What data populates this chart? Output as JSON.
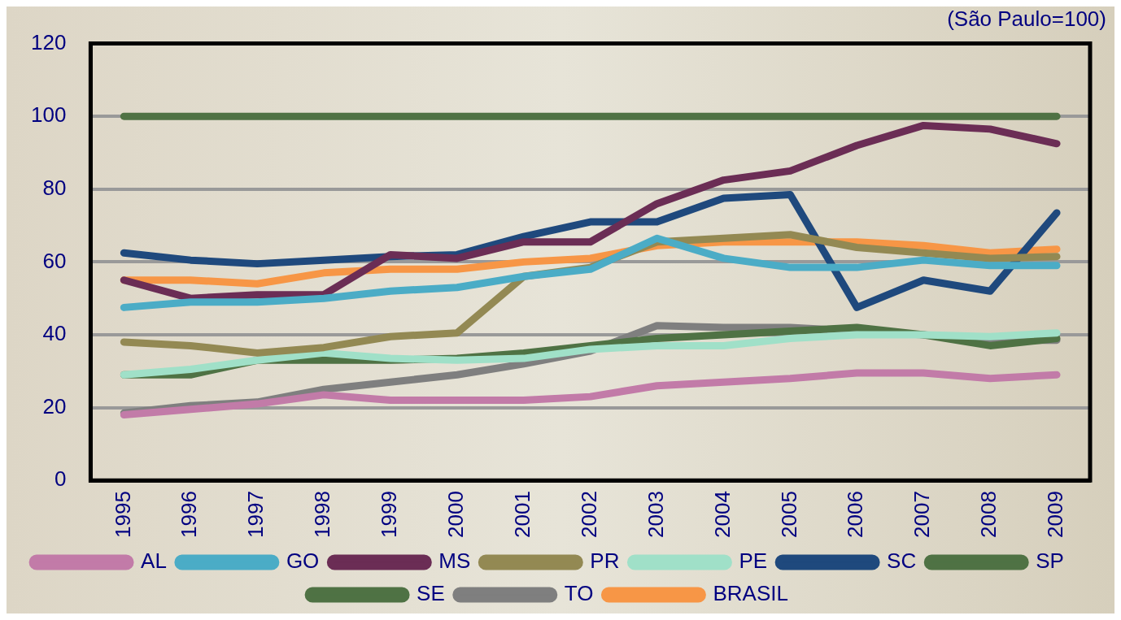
{
  "chart_data": {
    "type": "line",
    "subtitle": "(São Paulo=100)",
    "categories": [
      "1995",
      "1996",
      "1997",
      "1998",
      "1999",
      "2000",
      "2001",
      "2002",
      "2003",
      "2004",
      "2005",
      "2006",
      "2007",
      "2008",
      "2009"
    ],
    "series": [
      {
        "name": "AL",
        "color": "#c27ba8",
        "values": [
          18,
          19.5,
          21,
          23.5,
          22,
          22,
          22,
          23,
          26,
          27,
          28,
          29.5,
          29.5,
          28,
          29
        ]
      },
      {
        "name": "GO",
        "color": "#4bacc6",
        "values": [
          47.5,
          49,
          49,
          50,
          52,
          53,
          56,
          58,
          66.5,
          61,
          58.5,
          58.5,
          60.5,
          59,
          59
        ]
      },
      {
        "name": "MS",
        "color": "#6b2d55",
        "values": [
          55,
          50,
          51,
          51,
          62,
          61,
          65.5,
          65.5,
          76,
          82.5,
          85,
          92,
          97.5,
          96.5,
          92.5
        ]
      },
      {
        "name": "PR",
        "color": "#938953",
        "values": [
          38,
          37,
          35,
          36.5,
          39.5,
          40.5,
          56,
          58.5,
          65.5,
          66.5,
          67.5,
          64,
          62.5,
          61,
          61.5
        ]
      },
      {
        "name": "PE",
        "color": "#a0e0c8",
        "values": [
          29,
          30.5,
          33,
          35,
          33.5,
          33,
          33.5,
          36,
          37,
          37,
          39,
          40,
          40,
          39.5,
          40.5
        ]
      },
      {
        "name": "SC",
        "color": "#1f497d",
        "values": [
          62.5,
          60.5,
          59.5,
          60.5,
          61.5,
          62,
          67,
          71,
          71,
          77.5,
          78.5,
          47.5,
          55,
          52,
          73.5
        ]
      },
      {
        "name": "SP",
        "color": "#4f7244",
        "values": [
          100,
          100,
          100,
          100,
          100,
          100,
          100,
          100,
          100,
          100,
          100,
          100,
          100,
          100,
          100
        ]
      },
      {
        "name": "SE",
        "color": "#4f7244",
        "values": [
          29,
          29,
          33,
          33,
          33,
          33.5,
          35,
          37,
          39,
          40,
          41,
          42,
          40,
          37,
          39
        ]
      },
      {
        "name": "TO",
        "color": "#7f7f7f",
        "values": [
          18.5,
          20.5,
          21.5,
          25,
          27,
          29,
          32,
          35.5,
          42.5,
          42,
          42,
          41,
          40,
          38.5,
          38.5
        ]
      },
      {
        "name": "BRASIL",
        "color": "#f79646",
        "values": [
          55,
          55,
          54,
          57,
          58,
          58,
          60,
          61,
          64.5,
          65.5,
          65.5,
          65.5,
          64.5,
          62.5,
          63.5
        ]
      }
    ],
    "ylim": [
      0,
      120
    ],
    "yticks": [
      0,
      20,
      40,
      60,
      80,
      100,
      120
    ],
    "grid": "y",
    "legend": "bottom",
    "marker": "none",
    "line_style": "solid"
  }
}
